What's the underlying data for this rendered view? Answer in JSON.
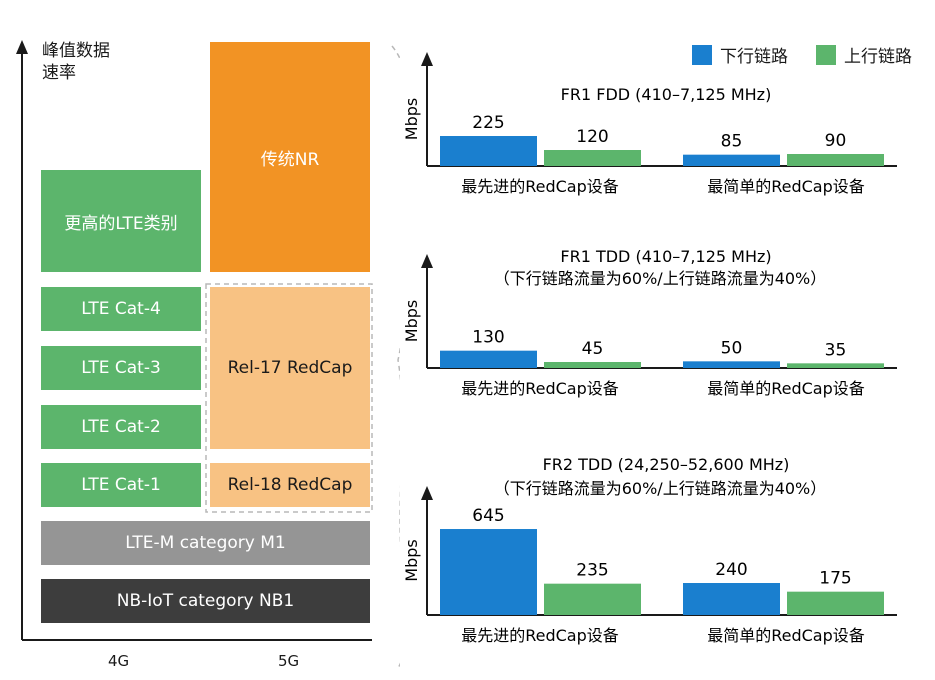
{
  "left_chart": {
    "y_label_line1": "峰值数据",
    "y_label_line2": "速率",
    "x_categories": [
      "4G",
      "5G"
    ],
    "blocks_4g": {
      "higher_lte": "更高的LTE类别",
      "cat4": "LTE Cat-4",
      "cat3": "LTE Cat-3",
      "cat2": "LTE Cat-2",
      "cat1": "LTE Cat-1"
    },
    "blocks_5g": {
      "nr": "传统NR",
      "rel17": "Rel-17 RedCap",
      "rel18": "Rel-18 RedCap"
    },
    "wide_blocks": {
      "ltem": "LTE-M category M1",
      "nbiot": "NB-IoT category NB1"
    }
  },
  "legend": {
    "dl": "下行链路",
    "ul": "上行链路",
    "dl_color": "#1a7fcf",
    "ul_color": "#5cb56c"
  },
  "chart_data": [
    {
      "type": "bar",
      "title": "FR1 FDD (410–7,125 MHz)",
      "subtitle": "",
      "ylabel": "Mbps",
      "categories": [
        "最先进的RedCap设备",
        "最简单的RedCap设备"
      ],
      "series": [
        {
          "name": "下行链路",
          "values": [
            225,
            85
          ]
        },
        {
          "name": "上行链路",
          "values": [
            120,
            90
          ]
        }
      ]
    },
    {
      "type": "bar",
      "title": "FR1 TDD (410–7,125 MHz)",
      "subtitle": "（下行链路流量为60%/上行链路流量为40%）",
      "ylabel": "Mbps",
      "categories": [
        "最先进的RedCap设备",
        "最简单的RedCap设备"
      ],
      "series": [
        {
          "name": "下行链路",
          "values": [
            130,
            50
          ]
        },
        {
          "name": "上行链路",
          "values": [
            45,
            35
          ]
        }
      ]
    },
    {
      "type": "bar",
      "title": "FR2 TDD (24,250–52,600 MHz)",
      "subtitle": "（下行链路流量为60%/上行链路流量为40%）",
      "ylabel": "Mbps",
      "categories": [
        "最先进的RedCap设备",
        "最简单的RedCap设备"
      ],
      "series": [
        {
          "name": "下行链路",
          "values": [
            645,
            240
          ]
        },
        {
          "name": "上行链路",
          "values": [
            235,
            175
          ]
        }
      ]
    }
  ]
}
